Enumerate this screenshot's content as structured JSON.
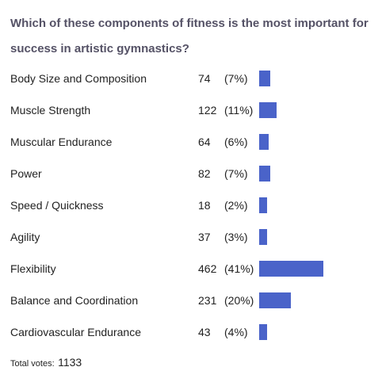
{
  "poll": {
    "question": "Which of these components of fitness is the most important for success in artistic gymnastics?",
    "options": [
      {
        "label": "Body Size and Composition",
        "votes": "74",
        "percent": "(7%)",
        "share": 0.07
      },
      {
        "label": "Muscle Strength",
        "votes": "122",
        "percent": "(11%)",
        "share": 0.11
      },
      {
        "label": "Muscular Endurance",
        "votes": "64",
        "percent": "(6%)",
        "share": 0.06
      },
      {
        "label": "Power",
        "votes": "82",
        "percent": "(7%)",
        "share": 0.07
      },
      {
        "label": "Speed / Quickness",
        "votes": "18",
        "percent": "(2%)",
        "share": 0.02
      },
      {
        "label": "Agility",
        "votes": "37",
        "percent": "(3%)",
        "share": 0.03
      },
      {
        "label": "Flexibility",
        "votes": "462",
        "percent": "(41%)",
        "share": 0.41
      },
      {
        "label": "Balance and Coordination",
        "votes": "231",
        "percent": "(20%)",
        "share": 0.2
      },
      {
        "label": "Cardiovascular Endurance",
        "votes": "43",
        "percent": "(4%)",
        "share": 0.04
      }
    ],
    "total_label": "Total votes:",
    "total_votes": "1133",
    "bar_color": "#4a63c9"
  }
}
